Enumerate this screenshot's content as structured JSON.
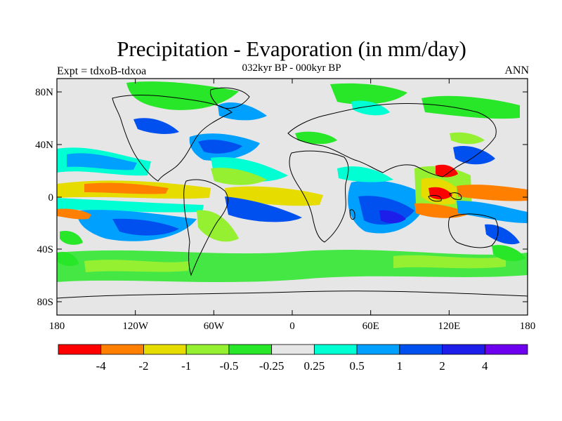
{
  "title": "Precipitation - Evaporation (in mm/day)",
  "subtitle": "032kyr BP - 000kyr BP",
  "left_subtitle": "Expt = tdxoB-tdxoa",
  "right_subtitle": "ANN",
  "lat_ticks": [
    "80N",
    "40N",
    "0",
    "40S",
    "80S"
  ],
  "lon_ticks": [
    "180",
    "120W",
    "60W",
    "0",
    "60E",
    "120E",
    "180"
  ],
  "colorbar": {
    "colors": [
      "#ff0000",
      "#ff8000",
      "#e6dc00",
      "#96f032",
      "#28e628",
      "#e6e6e6",
      "#00ffd2",
      "#00a0ff",
      "#0050f0",
      "#1e1eeb",
      "#6e00f0"
    ],
    "labels": [
      "-4",
      "-2",
      "-1",
      "-0.5",
      "-0.25",
      "0.25",
      "0.5",
      "1",
      "2",
      "4"
    ]
  },
  "map_background": "#e6e6e6"
}
